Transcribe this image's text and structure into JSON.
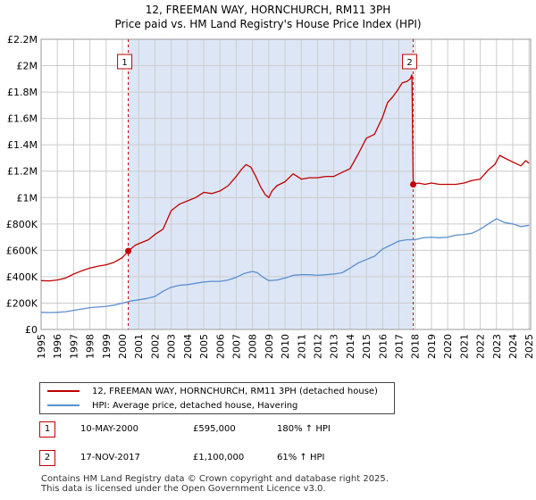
{
  "title_line1": "12, FREEMAN WAY, HORNCHURCH, RM11 3PH",
  "title_line2": "Price paid vs. HM Land Registry's House Price Index (HPI)",
  "colors": {
    "property": "#c00000",
    "hpi": "#5b8fd0",
    "shade": "#dde6f6",
    "grid": "#cccccc",
    "marker_border": "#c00000"
  },
  "chart_data": {
    "type": "line",
    "title": "12, FREEMAN WAY, HORNCHURCH, RM11 3PH — Price paid vs. HM Land Registry's House Price Index (HPI)",
    "xlabel": "",
    "ylabel": "",
    "xlim": [
      1995.0,
      2025.1
    ],
    "ylim": [
      0,
      2200000
    ],
    "x_ticks": [
      1995,
      1996,
      1997,
      1998,
      1999,
      2000,
      2001,
      2002,
      2003,
      2004,
      2005,
      2006,
      2007,
      2008,
      2009,
      2010,
      2011,
      2012,
      2013,
      2014,
      2015,
      2016,
      2017,
      2018,
      2019,
      2020,
      2021,
      2022,
      2023,
      2024,
      2025
    ],
    "x_tick_labels": [
      "1995",
      "1996",
      "1997",
      "1998",
      "1999",
      "2000",
      "2001",
      "2002",
      "2003",
      "2004",
      "2005",
      "2006",
      "2007",
      "2008",
      "2009",
      "2010",
      "2011",
      "2012",
      "2013",
      "2014",
      "2015",
      "2016",
      "2017",
      "2018",
      "2019",
      "2020",
      "2021",
      "2022",
      "2023",
      "2024",
      "2025"
    ],
    "y_ticks": [
      0,
      200000,
      400000,
      600000,
      800000,
      1000000,
      1200000,
      1400000,
      1600000,
      1800000,
      2000000,
      2200000
    ],
    "y_tick_labels": [
      "£0",
      "£200K",
      "£400K",
      "£600K",
      "£800K",
      "£1M",
      "£1.2M",
      "£1.4M",
      "£1.6M",
      "£1.8M",
      "£2M",
      "£2.2M"
    ],
    "grid": true,
    "shaded_range": [
      2000.36,
      2017.88
    ],
    "series": [
      {
        "name": "12, FREEMAN WAY, HORNCHURCH, RM11 3PH (detached house)",
        "color": "#c00000",
        "x": [
          1995.0,
          1995.5,
          1996.0,
          1996.5,
          1997.0,
          1997.5,
          1998.0,
          1998.5,
          1999.0,
          1999.5,
          2000.0,
          2000.36,
          2000.8,
          2001.2,
          2001.6,
          2002.0,
          2002.5,
          2003.0,
          2003.5,
          2004.0,
          2004.5,
          2005.0,
          2005.5,
          2006.0,
          2006.5,
          2007.0,
          2007.3,
          2007.6,
          2007.9,
          2008.2,
          2008.5,
          2008.8,
          2009.0,
          2009.2,
          2009.5,
          2010.0,
          2010.5,
          2011.0,
          2011.5,
          2012.0,
          2012.5,
          2013.0,
          2013.5,
          2014.0,
          2014.5,
          2015.0,
          2015.5,
          2016.0,
          2016.3,
          2016.6,
          2016.9,
          2017.2,
          2017.5,
          2017.7,
          2017.8,
          2017.88,
          2018.2,
          2018.6,
          2019.0,
          2019.5,
          2020.0,
          2020.5,
          2021.0,
          2021.5,
          2022.0,
          2022.5,
          2022.9,
          2023.2,
          2023.5,
          2024.0,
          2024.5,
          2024.8,
          2025.0
        ],
        "values": [
          370000,
          368000,
          375000,
          390000,
          420000,
          445000,
          465000,
          480000,
          490000,
          510000,
          545000,
          595000,
          640000,
          660000,
          680000,
          720000,
          760000,
          900000,
          950000,
          975000,
          1000000,
          1040000,
          1030000,
          1050000,
          1090000,
          1160000,
          1210000,
          1250000,
          1230000,
          1160000,
          1080000,
          1020000,
          1000000,
          1050000,
          1090000,
          1120000,
          1180000,
          1140000,
          1150000,
          1150000,
          1160000,
          1160000,
          1190000,
          1220000,
          1330000,
          1450000,
          1480000,
          1610000,
          1720000,
          1760000,
          1810000,
          1870000,
          1880000,
          1900000,
          1930000,
          1100000,
          1110000,
          1100000,
          1110000,
          1100000,
          1100000,
          1100000,
          1110000,
          1130000,
          1140000,
          1210000,
          1250000,
          1320000,
          1300000,
          1270000,
          1240000,
          1280000,
          1260000
        ]
      },
      {
        "name": "HPI: Average price, detached house, Havering",
        "color": "#5b8fd0",
        "x": [
          1995.0,
          1995.5,
          1996.0,
          1996.5,
          1997.0,
          1997.5,
          1998.0,
          1998.5,
          1999.0,
          1999.5,
          2000.0,
          2000.5,
          2001.0,
          2001.5,
          2002.0,
          2002.5,
          2003.0,
          2003.5,
          2004.0,
          2004.5,
          2005.0,
          2005.5,
          2006.0,
          2006.5,
          2007.0,
          2007.5,
          2008.0,
          2008.3,
          2008.6,
          2009.0,
          2009.5,
          2010.0,
          2010.5,
          2011.0,
          2011.5,
          2012.0,
          2012.5,
          2013.0,
          2013.5,
          2014.0,
          2014.5,
          2015.0,
          2015.5,
          2016.0,
          2016.5,
          2017.0,
          2017.5,
          2018.0,
          2018.5,
          2019.0,
          2019.5,
          2020.0,
          2020.5,
          2021.0,
          2021.5,
          2022.0,
          2022.5,
          2023.0,
          2023.5,
          2024.0,
          2024.5,
          2025.0
        ],
        "values": [
          130000,
          128000,
          130000,
          135000,
          145000,
          155000,
          165000,
          170000,
          175000,
          185000,
          200000,
          215000,
          225000,
          235000,
          250000,
          290000,
          320000,
          335000,
          340000,
          350000,
          360000,
          365000,
          365000,
          375000,
          395000,
          425000,
          440000,
          430000,
          400000,
          370000,
          375000,
          390000,
          410000,
          415000,
          415000,
          410000,
          415000,
          420000,
          430000,
          465000,
          505000,
          530000,
          555000,
          610000,
          640000,
          670000,
          680000,
          680000,
          695000,
          700000,
          695000,
          700000,
          715000,
          720000,
          730000,
          760000,
          800000,
          840000,
          810000,
          800000,
          780000,
          790000
        ]
      }
    ],
    "annotations": [
      {
        "label": "1",
        "x": 2000.36,
        "y": 595000
      },
      {
        "label": "2",
        "x": 2017.88,
        "y": 1100000
      }
    ]
  },
  "legend": {
    "property_label": "12, FREEMAN WAY, HORNCHURCH, RM11 3PH (detached house)",
    "hpi_label": "HPI: Average price, detached house, Havering"
  },
  "sales": [
    {
      "num": "1",
      "date": "10-MAY-2000",
      "price": "£595,000",
      "hpi": "180% ↑ HPI"
    },
    {
      "num": "2",
      "date": "17-NOV-2017",
      "price": "£1,100,000",
      "hpi": "61% ↑ HPI"
    }
  ],
  "footer_line1": "Contains HM Land Registry data © Crown copyright and database right 2025.",
  "footer_line2": "This data is licensed under the Open Government Licence v3.0."
}
